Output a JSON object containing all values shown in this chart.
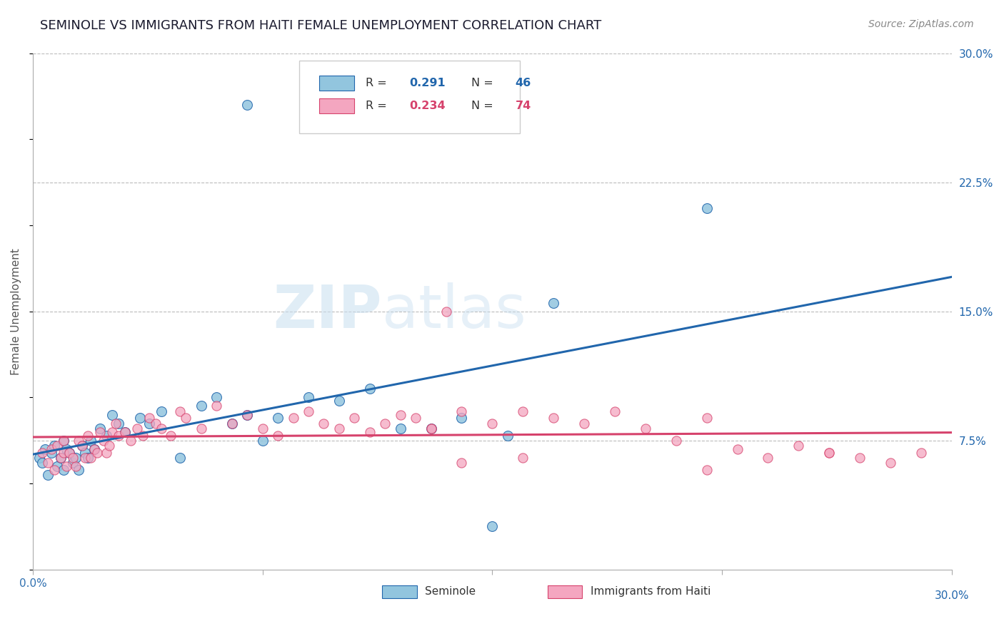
{
  "title": "SEMINOLE VS IMMIGRANTS FROM HAITI FEMALE UNEMPLOYMENT CORRELATION CHART",
  "source_text": "Source: ZipAtlas.com",
  "ylabel": "Female Unemployment",
  "color_blue": "#92c5de",
  "color_pink": "#f4a6c0",
  "color_blue_line": "#2166ac",
  "color_pink_line": "#d6426c",
  "color_blue_text": "#2166ac",
  "color_pink_text": "#d6426c",
  "background_color": "#ffffff",
  "grid_color": "#bbbbbb",
  "title_color": "#1a1a2e",
  "watermark_zip": "ZIP",
  "watermark_atlas": "atlas",
  "xlim": [
    0.0,
    0.3
  ],
  "ylim": [
    0.0,
    0.3
  ],
  "seminole_x": [
    0.002,
    0.003,
    0.004,
    0.005,
    0.006,
    0.007,
    0.008,
    0.009,
    0.01,
    0.01,
    0.011,
    0.012,
    0.013,
    0.014,
    0.015,
    0.016,
    0.017,
    0.018,
    0.019,
    0.02,
    0.022,
    0.024,
    0.026,
    0.028,
    0.03,
    0.035,
    0.038,
    0.042,
    0.048,
    0.055,
    0.06,
    0.065,
    0.07,
    0.075,
    0.08,
    0.09,
    0.1,
    0.11,
    0.12,
    0.13,
    0.14,
    0.155,
    0.17,
    0.22,
    0.07,
    0.15
  ],
  "seminole_y": [
    0.065,
    0.062,
    0.07,
    0.055,
    0.068,
    0.072,
    0.06,
    0.065,
    0.058,
    0.075,
    0.07,
    0.068,
    0.062,
    0.065,
    0.058,
    0.072,
    0.068,
    0.065,
    0.075,
    0.07,
    0.082,
    0.078,
    0.09,
    0.085,
    0.08,
    0.088,
    0.085,
    0.092,
    0.065,
    0.095,
    0.1,
    0.085,
    0.09,
    0.075,
    0.088,
    0.1,
    0.098,
    0.105,
    0.082,
    0.082,
    0.088,
    0.078,
    0.155,
    0.21,
    0.27,
    0.025
  ],
  "haiti_x": [
    0.003,
    0.005,
    0.006,
    0.007,
    0.008,
    0.009,
    0.01,
    0.01,
    0.011,
    0.012,
    0.013,
    0.014,
    0.015,
    0.016,
    0.017,
    0.018,
    0.019,
    0.02,
    0.021,
    0.022,
    0.023,
    0.024,
    0.025,
    0.026,
    0.027,
    0.028,
    0.03,
    0.032,
    0.034,
    0.036,
    0.038,
    0.04,
    0.042,
    0.045,
    0.048,
    0.05,
    0.055,
    0.06,
    0.065,
    0.07,
    0.075,
    0.08,
    0.085,
    0.09,
    0.095,
    0.1,
    0.105,
    0.11,
    0.115,
    0.12,
    0.125,
    0.13,
    0.14,
    0.15,
    0.16,
    0.17,
    0.18,
    0.19,
    0.2,
    0.21,
    0.22,
    0.23,
    0.24,
    0.25,
    0.26,
    0.27,
    0.28,
    0.29,
    0.135,
    0.16,
    0.22,
    0.14,
    0.26,
    0.13
  ],
  "haiti_y": [
    0.068,
    0.062,
    0.07,
    0.058,
    0.072,
    0.065,
    0.075,
    0.068,
    0.06,
    0.068,
    0.065,
    0.06,
    0.075,
    0.072,
    0.065,
    0.078,
    0.065,
    0.07,
    0.068,
    0.08,
    0.075,
    0.068,
    0.072,
    0.08,
    0.085,
    0.078,
    0.08,
    0.075,
    0.082,
    0.078,
    0.088,
    0.085,
    0.082,
    0.078,
    0.092,
    0.088,
    0.082,
    0.095,
    0.085,
    0.09,
    0.082,
    0.078,
    0.088,
    0.092,
    0.085,
    0.082,
    0.088,
    0.08,
    0.085,
    0.09,
    0.088,
    0.082,
    0.092,
    0.085,
    0.092,
    0.088,
    0.085,
    0.092,
    0.082,
    0.075,
    0.088,
    0.07,
    0.065,
    0.072,
    0.068,
    0.065,
    0.062,
    0.068,
    0.15,
    0.065,
    0.058,
    0.062,
    0.068,
    0.082
  ]
}
